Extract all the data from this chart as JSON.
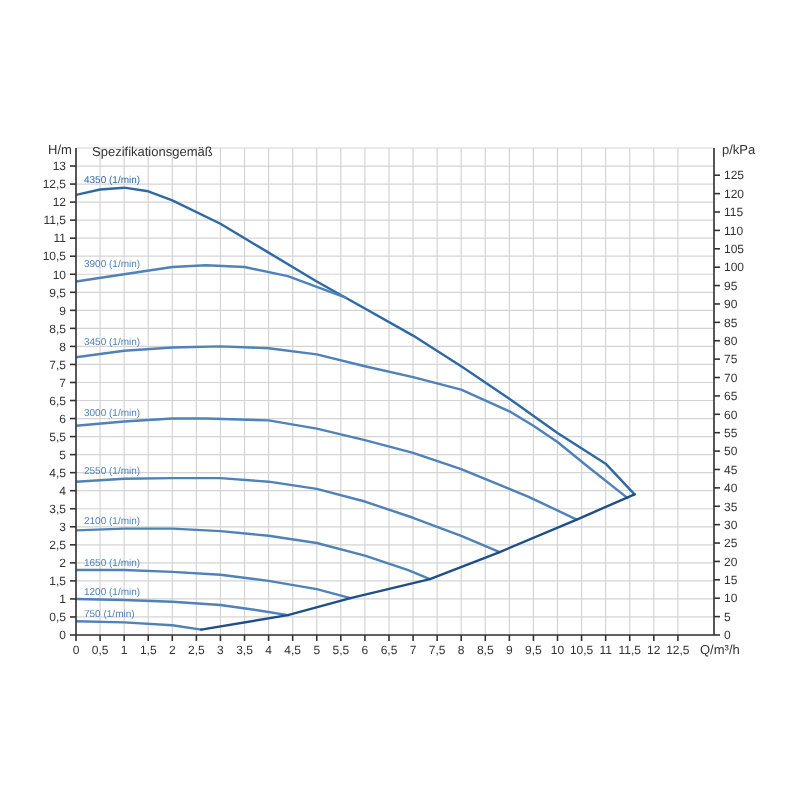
{
  "chart_data": {
    "type": "line",
    "title": "Spezifikationsgemäß",
    "xlabel": "Q/m³/h",
    "ylabel": "H/m",
    "y2label": "p/kPa",
    "xlim": [
      0,
      13.25
    ],
    "xticks": [
      0,
      {
        "value": 0.5,
        "label": "0,5"
      },
      1,
      {
        "value": 1.5,
        "label": "1,5"
      },
      2,
      {
        "value": 2.5,
        "label": "2,5"
      },
      3,
      {
        "value": 3.5,
        "label": "3,5"
      },
      4,
      {
        "value": 4.5,
        "label": "4,5"
      },
      5,
      {
        "value": 5.5,
        "label": "5,5"
      },
      6,
      {
        "value": 6.5,
        "label": "6,5"
      },
      7,
      {
        "value": 7.5,
        "label": "7,5"
      },
      8,
      {
        "value": 8.5,
        "label": "8,5"
      },
      9,
      {
        "value": 9.5,
        "label": "9,5"
      },
      10,
      {
        "value": 10.5,
        "label": "10,5"
      },
      11,
      {
        "value": 11.5,
        "label": "11,5"
      },
      12,
      {
        "value": 12.5,
        "label": "12,5"
      }
    ],
    "ylim": [
      0,
      13.5
    ],
    "yticks": [
      0,
      {
        "value": 0.5,
        "label": "0,5"
      },
      1,
      {
        "value": 1.5,
        "label": "1,5"
      },
      2,
      {
        "value": 2.5,
        "label": "2,5"
      },
      3,
      {
        "value": 3.5,
        "label": "3,5"
      },
      4,
      {
        "value": 4.5,
        "label": "4,5"
      },
      5,
      {
        "value": 5.5,
        "label": "5,5"
      },
      6,
      {
        "value": 6.5,
        "label": "6,5"
      },
      7,
      {
        "value": 7.5,
        "label": "7,5"
      },
      8,
      {
        "value": 8.5,
        "label": "8,5"
      },
      9,
      {
        "value": 9.5,
        "label": "9,5"
      },
      10,
      {
        "value": 10.5,
        "label": "10,5"
      },
      11,
      {
        "value": 11.5,
        "label": "11,5"
      },
      12,
      {
        "value": 12.5,
        "label": "12,5"
      },
      13
    ],
    "y2lim": [
      0,
      132.4
    ],
    "y2ticks": [
      0,
      5,
      10,
      15,
      20,
      25,
      30,
      35,
      40,
      45,
      50,
      55,
      60,
      65,
      70,
      75,
      80,
      85,
      90,
      95,
      100,
      105,
      110,
      115,
      120,
      125
    ],
    "grid": true,
    "marker": "none",
    "line_style": "solid",
    "series": [
      {
        "name": "4350 (1/min)",
        "color": "#2f69a3",
        "x": [
          0,
          0.5,
          1,
          1.5,
          2,
          3,
          4,
          5,
          6,
          7,
          8,
          9,
          10,
          11,
          11.6
        ],
        "values": [
          12.2,
          12.35,
          12.4,
          12.3,
          12.05,
          11.4,
          10.6,
          9.8,
          9.05,
          8.3,
          7.45,
          6.55,
          5.6,
          4.75,
          3.9
        ]
      },
      {
        "name": "3900 (1/min)",
        "color": "#4f82b9",
        "x": [
          0,
          1,
          2,
          2.7,
          3.5,
          4.4,
          5,
          5.6
        ],
        "values": [
          9.8,
          10,
          10.2,
          10.25,
          10.2,
          9.95,
          9.65,
          9.35
        ]
      },
      {
        "name": "3450 (1/min)",
        "color": "#4f82b9",
        "x": [
          0,
          1,
          2,
          3,
          4,
          5,
          6,
          7,
          8,
          9,
          9.5,
          10,
          10.6,
          11.45
        ],
        "values": [
          7.7,
          7.88,
          7.97,
          8,
          7.95,
          7.78,
          7.45,
          7.15,
          6.8,
          6.2,
          5.8,
          5.35,
          4.7,
          3.8
        ]
      },
      {
        "name": "3000 (1/min)",
        "color": "#4f82b9",
        "x": [
          0,
          1,
          2,
          2.7,
          4,
          5,
          6,
          7,
          8,
          9,
          9.4,
          10.4
        ],
        "values": [
          5.8,
          5.92,
          6,
          6,
          5.95,
          5.72,
          5.4,
          5.05,
          4.6,
          4.05,
          3.83,
          3.2
        ]
      },
      {
        "name": "2550 (1/min)",
        "color": "#4f82b9",
        "x": [
          0,
          1,
          2,
          3,
          4,
          5,
          6,
          7,
          8,
          8.8
        ],
        "values": [
          4.25,
          4.33,
          4.35,
          4.35,
          4.25,
          4.05,
          3.7,
          3.25,
          2.75,
          2.3
        ]
      },
      {
        "name": "2100 (1/min)",
        "color": "#4f82b9",
        "x": [
          0,
          1,
          2,
          3,
          4,
          5,
          6,
          6.9,
          7.35
        ],
        "values": [
          2.9,
          2.95,
          2.95,
          2.88,
          2.75,
          2.55,
          2.2,
          1.8,
          1.55
        ]
      },
      {
        "name": "1650 (1/min)",
        "color": "#4f82b9",
        "x": [
          0,
          1,
          2,
          3,
          4,
          5,
          5.7
        ],
        "values": [
          1.8,
          1.8,
          1.75,
          1.67,
          1.5,
          1.27,
          1.02
        ]
      },
      {
        "name": "1200 (1/min)",
        "color": "#4f82b9",
        "x": [
          0,
          1,
          2,
          3,
          3.8,
          4.4
        ],
        "values": [
          1,
          0.97,
          0.92,
          0.83,
          0.68,
          0.55
        ]
      },
      {
        "name": "750 (1/min)",
        "color": "#4f82b9",
        "x": [
          0,
          1,
          2,
          2.6
        ],
        "values": [
          0.38,
          0.35,
          0.27,
          0.15
        ]
      },
      {
        "color": "#1f4f86",
        "x": [
          2.6,
          4.4,
          5.7,
          7.35,
          8.8,
          10.4,
          11.6
        ],
        "values": [
          0.15,
          0.55,
          1.02,
          1.55,
          2.3,
          3.2,
          3.9
        ]
      }
    ]
  }
}
